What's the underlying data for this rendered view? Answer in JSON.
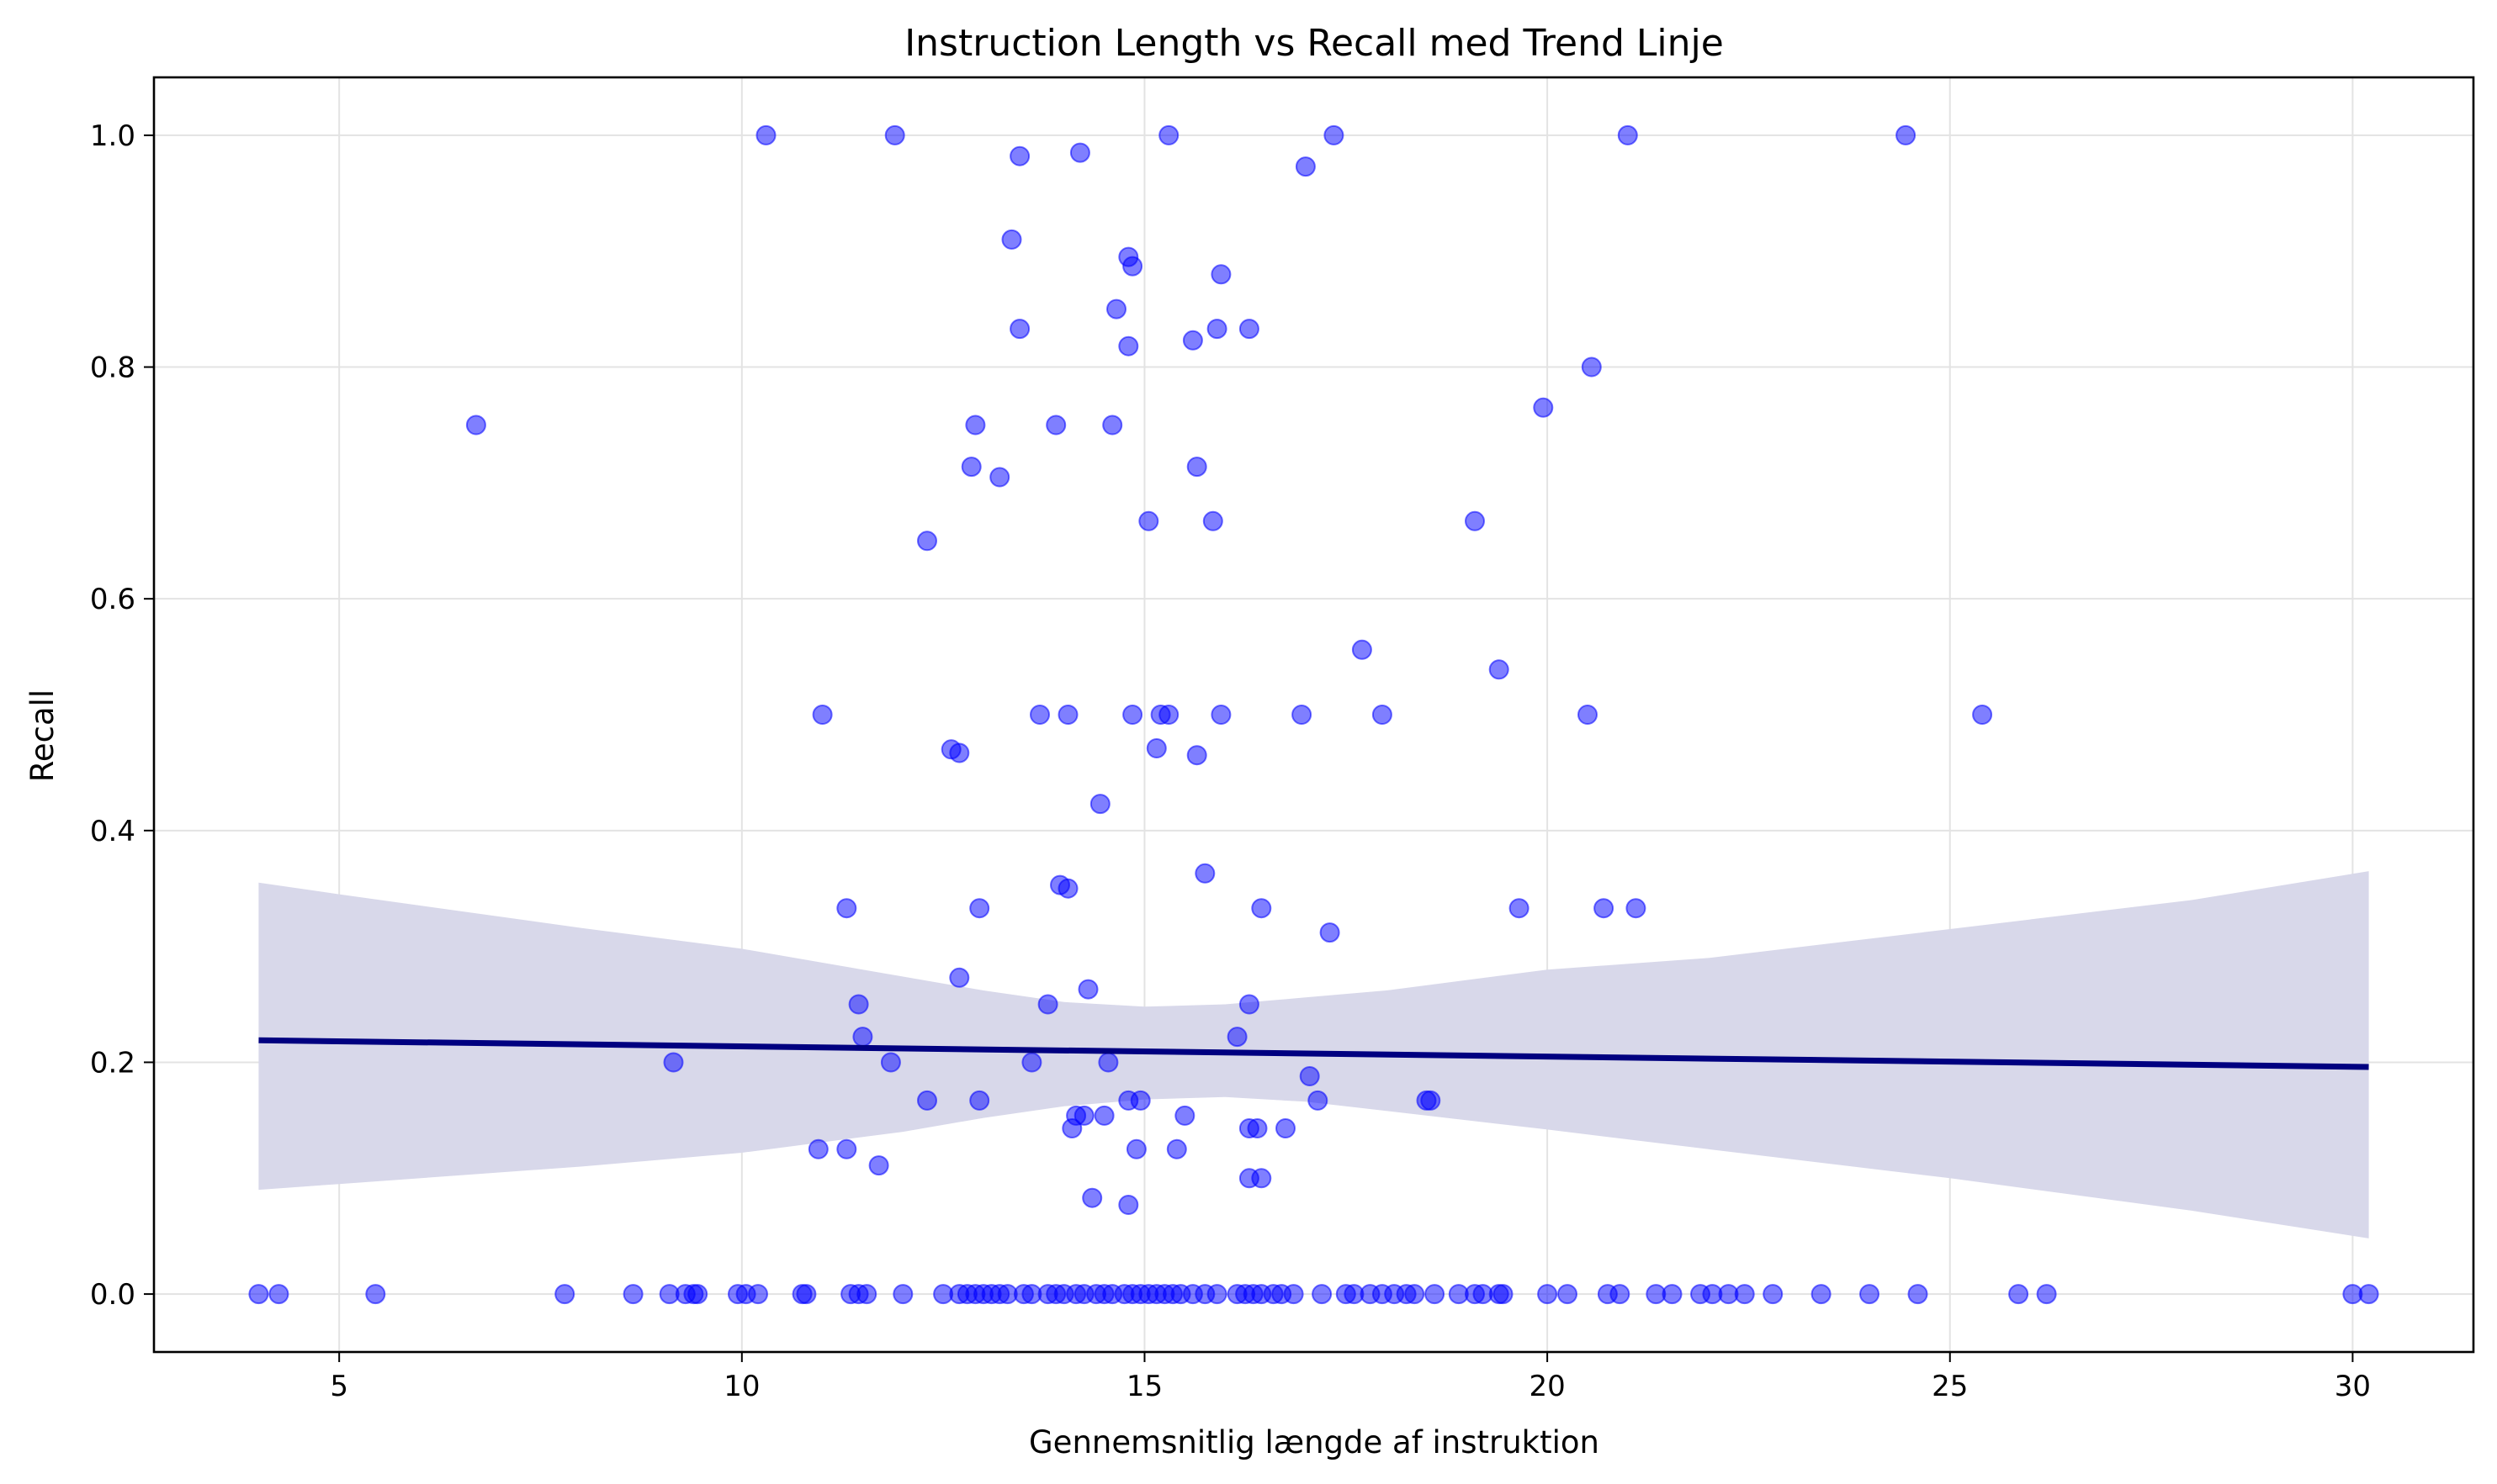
{
  "chart_data": {
    "type": "scatter",
    "title": "Instruction Length vs Recall med Trend Linje",
    "xlabel": "Gennemsnitlig længde af instruktion",
    "ylabel": "Recall",
    "xlim": [
      2.7,
      31.5
    ],
    "ylim": [
      -0.05,
      1.05
    ],
    "xticks": [
      5,
      10,
      15,
      20,
      25,
      30
    ],
    "xtick_labels": [
      "5",
      "10",
      "15",
      "20",
      "25",
      "30"
    ],
    "yticks": [
      0.0,
      0.2,
      0.4,
      0.6,
      0.8,
      1.0
    ],
    "ytick_labels": [
      "0.0",
      "0.2",
      "0.4",
      "0.6",
      "0.8",
      "1.0"
    ],
    "grid": true,
    "colors": {
      "points": "#0000ff",
      "trend": "#000080",
      "band": "#d8d8ea"
    },
    "points": [
      [
        10.3,
        1.0
      ],
      [
        11.9,
        1.0
      ],
      [
        13.45,
        0.982
      ],
      [
        14.2,
        0.985
      ],
      [
        15.3,
        1.0
      ],
      [
        17.0,
        0.973
      ],
      [
        17.35,
        1.0
      ],
      [
        21.0,
        1.0
      ],
      [
        24.45,
        1.0
      ],
      [
        13.35,
        0.91
      ],
      [
        14.8,
        0.895
      ],
      [
        14.85,
        0.887
      ],
      [
        15.95,
        0.88
      ],
      [
        14.65,
        0.85
      ],
      [
        13.45,
        0.833
      ],
      [
        14.8,
        0.818
      ],
      [
        15.6,
        0.823
      ],
      [
        15.9,
        0.833
      ],
      [
        16.3,
        0.833
      ],
      [
        20.55,
        0.8
      ],
      [
        19.95,
        0.765
      ],
      [
        6.7,
        0.75
      ],
      [
        12.9,
        0.75
      ],
      [
        13.9,
        0.75
      ],
      [
        14.6,
        0.75
      ],
      [
        12.85,
        0.714
      ],
      [
        13.2,
        0.705
      ],
      [
        15.65,
        0.714
      ],
      [
        15.05,
        0.667
      ],
      [
        15.85,
        0.667
      ],
      [
        19.1,
        0.667
      ],
      [
        12.3,
        0.65
      ],
      [
        17.7,
        0.556
      ],
      [
        19.4,
        0.539
      ],
      [
        11.0,
        0.5
      ],
      [
        13.7,
        0.5
      ],
      [
        14.05,
        0.5
      ],
      [
        14.85,
        0.5
      ],
      [
        15.2,
        0.5
      ],
      [
        15.3,
        0.5
      ],
      [
        15.95,
        0.5
      ],
      [
        16.95,
        0.5
      ],
      [
        17.95,
        0.5
      ],
      [
        20.5,
        0.5
      ],
      [
        25.4,
        0.5
      ],
      [
        12.6,
        0.47
      ],
      [
        12.7,
        0.467
      ],
      [
        15.15,
        0.471
      ],
      [
        15.65,
        0.465
      ],
      [
        14.45,
        0.423
      ],
      [
        15.75,
        0.363
      ],
      [
        13.95,
        0.353
      ],
      [
        14.05,
        0.35
      ],
      [
        11.3,
        0.333
      ],
      [
        12.95,
        0.333
      ],
      [
        16.45,
        0.333
      ],
      [
        19.65,
        0.333
      ],
      [
        20.7,
        0.333
      ],
      [
        21.1,
        0.333
      ],
      [
        17.3,
        0.312
      ],
      [
        12.7,
        0.273
      ],
      [
        14.3,
        0.263
      ],
      [
        11.45,
        0.25
      ],
      [
        13.8,
        0.25
      ],
      [
        16.3,
        0.25
      ],
      [
        11.5,
        0.222
      ],
      [
        16.15,
        0.222
      ],
      [
        9.15,
        0.2
      ],
      [
        11.85,
        0.2
      ],
      [
        13.6,
        0.2
      ],
      [
        14.55,
        0.2
      ],
      [
        17.05,
        0.188
      ],
      [
        12.3,
        0.167
      ],
      [
        12.95,
        0.167
      ],
      [
        14.8,
        0.167
      ],
      [
        14.95,
        0.167
      ],
      [
        17.15,
        0.167
      ],
      [
        18.5,
        0.167
      ],
      [
        18.55,
        0.167
      ],
      [
        14.15,
        0.154
      ],
      [
        14.25,
        0.154
      ],
      [
        14.5,
        0.154
      ],
      [
        15.5,
        0.154
      ],
      [
        14.1,
        0.143
      ],
      [
        16.3,
        0.143
      ],
      [
        16.4,
        0.143
      ],
      [
        16.75,
        0.143
      ],
      [
        10.95,
        0.125
      ],
      [
        11.3,
        0.125
      ],
      [
        14.9,
        0.125
      ],
      [
        15.4,
        0.125
      ],
      [
        11.7,
        0.111
      ],
      [
        16.3,
        0.1
      ],
      [
        16.45,
        0.1
      ],
      [
        14.35,
        0.083
      ],
      [
        14.8,
        0.077
      ],
      [
        4.0,
        0.0
      ],
      [
        4.25,
        0.0
      ],
      [
        5.45,
        0.0
      ],
      [
        7.8,
        0.0
      ],
      [
        8.65,
        0.0
      ],
      [
        9.1,
        0.0
      ],
      [
        9.3,
        0.0
      ],
      [
        9.4,
        0.0
      ],
      [
        9.45,
        0.0
      ],
      [
        9.95,
        0.0
      ],
      [
        10.05,
        0.0
      ],
      [
        10.2,
        0.0
      ],
      [
        10.75,
        0.0
      ],
      [
        10.8,
        0.0
      ],
      [
        11.35,
        0.0
      ],
      [
        11.45,
        0.0
      ],
      [
        11.55,
        0.0
      ],
      [
        12.0,
        0.0
      ],
      [
        12.5,
        0.0
      ],
      [
        12.7,
        0.0
      ],
      [
        12.8,
        0.0
      ],
      [
        12.9,
        0.0
      ],
      [
        13.0,
        0.0
      ],
      [
        13.1,
        0.0
      ],
      [
        13.2,
        0.0
      ],
      [
        13.3,
        0.0
      ],
      [
        13.5,
        0.0
      ],
      [
        13.6,
        0.0
      ],
      [
        13.8,
        0.0
      ],
      [
        13.9,
        0.0
      ],
      [
        14.0,
        0.0
      ],
      [
        14.15,
        0.0
      ],
      [
        14.25,
        0.0
      ],
      [
        14.4,
        0.0
      ],
      [
        14.5,
        0.0
      ],
      [
        14.6,
        0.0
      ],
      [
        14.75,
        0.0
      ],
      [
        14.85,
        0.0
      ],
      [
        14.95,
        0.0
      ],
      [
        15.05,
        0.0
      ],
      [
        15.15,
        0.0
      ],
      [
        15.25,
        0.0
      ],
      [
        15.35,
        0.0
      ],
      [
        15.45,
        0.0
      ],
      [
        15.6,
        0.0
      ],
      [
        15.75,
        0.0
      ],
      [
        15.9,
        0.0
      ],
      [
        16.15,
        0.0
      ],
      [
        16.25,
        0.0
      ],
      [
        16.35,
        0.0
      ],
      [
        16.45,
        0.0
      ],
      [
        16.6,
        0.0
      ],
      [
        16.7,
        0.0
      ],
      [
        16.85,
        0.0
      ],
      [
        17.2,
        0.0
      ],
      [
        17.5,
        0.0
      ],
      [
        17.6,
        0.0
      ],
      [
        17.8,
        0.0
      ],
      [
        17.95,
        0.0
      ],
      [
        18.1,
        0.0
      ],
      [
        18.25,
        0.0
      ],
      [
        18.35,
        0.0
      ],
      [
        18.6,
        0.0
      ],
      [
        18.9,
        0.0
      ],
      [
        19.1,
        0.0
      ],
      [
        19.2,
        0.0
      ],
      [
        19.4,
        0.0
      ],
      [
        19.45,
        0.0
      ],
      [
        20.0,
        0.0
      ],
      [
        20.25,
        0.0
      ],
      [
        20.75,
        0.0
      ],
      [
        20.9,
        0.0
      ],
      [
        21.35,
        0.0
      ],
      [
        21.55,
        0.0
      ],
      [
        21.9,
        0.0
      ],
      [
        22.05,
        0.0
      ],
      [
        22.25,
        0.0
      ],
      [
        22.45,
        0.0
      ],
      [
        22.8,
        0.0
      ],
      [
        23.4,
        0.0
      ],
      [
        24.0,
        0.0
      ],
      [
        24.6,
        0.0
      ],
      [
        25.85,
        0.0
      ],
      [
        26.2,
        0.0
      ],
      [
        30.0,
        0.0
      ],
      [
        30.2,
        0.0
      ]
    ],
    "trend": {
      "x": [
        4.0,
        30.2
      ],
      "y": [
        0.219,
        0.196
      ]
    },
    "band": {
      "x": [
        4.0,
        5.0,
        8.0,
        10.0,
        12.0,
        13.0,
        14.0,
        15.0,
        16.0,
        17.0,
        18.0,
        20.0,
        22.0,
        25.0,
        28.0,
        30.2
      ],
      "upper": [
        0.355,
        0.345,
        0.316,
        0.298,
        0.274,
        0.262,
        0.252,
        0.248,
        0.25,
        0.256,
        0.262,
        0.28,
        0.29,
        0.315,
        0.34,
        0.365
      ],
      "lower": [
        0.09,
        0.095,
        0.11,
        0.122,
        0.14,
        0.152,
        0.162,
        0.168,
        0.17,
        0.166,
        0.158,
        0.142,
        0.125,
        0.1,
        0.072,
        0.048
      ]
    }
  }
}
